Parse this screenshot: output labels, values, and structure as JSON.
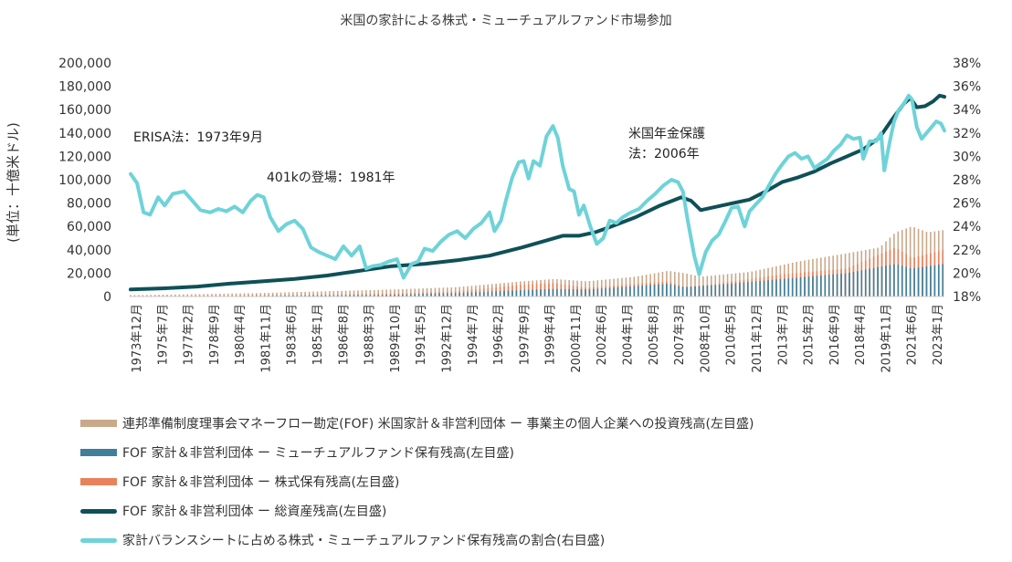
{
  "chart_data": {
    "type": "bar+line",
    "title": "米国の家計による株式・ミューチュアルファンド市場参加",
    "ylabel_left": "(単位：十億米ドル)",
    "ylim_left": [
      0,
      200000
    ],
    "yticks_left": [
      "200,000",
      "180,000",
      "160,000",
      "140,000",
      "120,000",
      "100,000",
      "80,000",
      "60,000",
      "40,000",
      "20,000",
      "0"
    ],
    "ylim_right": [
      18,
      38
    ],
    "yticks_right": [
      "38%",
      "36%",
      "34%",
      "32%",
      "30%",
      "28%",
      "26%",
      "24%",
      "22%",
      "20%",
      "18%"
    ],
    "x_tick_labels": [
      "1973年12月",
      "1975年7月",
      "1977年2月",
      "1978年9月",
      "1980年4月",
      "1981年11月",
      "1983年6月",
      "1985年1月",
      "1986年8月",
      "1988年3月",
      "1989年10月",
      "1991年5月",
      "1992年12月",
      "1994年7月",
      "1996年2月",
      "1997年9月",
      "1999年4月",
      "2000年11月",
      "2002年6月",
      "2004年1月",
      "2005年8月",
      "2007年3月",
      "2008年10月",
      "2010年5月",
      "2011年12月",
      "2013年7月",
      "2015年2月",
      "2016年9月",
      "2018年4月",
      "2019年11月",
      "2021年6月",
      "2023年1月"
    ],
    "x_range_years": [
      1973.9,
      2024.0
    ],
    "annotations": [
      "ERISA法：1973年9月",
      "401kの登場：1981年",
      "米国年金保護法：2006年"
    ],
    "series": [
      {
        "name": "連邦準備制度理事会マネーフロー勘定(FOF) 米国家計＆非営利団体 ー 事業主の個人企業への投資残高(左目盛)",
        "kind": "bar",
        "axis": "left",
        "color": "#c9a98a",
        "points": [
          [
            1974,
            1200
          ],
          [
            1978,
            2000
          ],
          [
            1982,
            3000
          ],
          [
            1986,
            4500
          ],
          [
            1990,
            6000
          ],
          [
            1994,
            8000
          ],
          [
            1998,
            13000
          ],
          [
            2000,
            15000
          ],
          [
            2002,
            13000
          ],
          [
            2005,
            17000
          ],
          [
            2007,
            22000
          ],
          [
            2008,
            20000
          ],
          [
            2009,
            17000
          ],
          [
            2012,
            21000
          ],
          [
            2015,
            30000
          ],
          [
            2018,
            37000
          ],
          [
            2020,
            42000
          ],
          [
            2021,
            55000
          ],
          [
            2022,
            60000
          ],
          [
            2023,
            55000
          ],
          [
            2024,
            57000
          ]
        ]
      },
      {
        "name": "FOF 家計＆非営利団体 ー ミューチュアルファンド保有残高(左目盛)",
        "kind": "bar",
        "axis": "left",
        "color": "#3f7f9a",
        "points": [
          [
            1974,
            200
          ],
          [
            1980,
            400
          ],
          [
            1986,
            1000
          ],
          [
            1990,
            1500
          ],
          [
            1994,
            3000
          ],
          [
            1998,
            5500
          ],
          [
            2000,
            6500
          ],
          [
            2002,
            6000
          ],
          [
            2007,
            11000
          ],
          [
            2008,
            8000
          ],
          [
            2010,
            10000
          ],
          [
            2014,
            15000
          ],
          [
            2018,
            20000
          ],
          [
            2021,
            28000
          ],
          [
            2022,
            24000
          ],
          [
            2024,
            28000
          ]
        ]
      },
      {
        "name": "FOF 家計＆非営利団体 ー 株式保有残高(左目盛)",
        "kind": "bar",
        "axis": "left",
        "color": "#e8825c",
        "points": [
          [
            1974,
            500
          ],
          [
            1980,
            900
          ],
          [
            1986,
            1600
          ],
          [
            1990,
            2500
          ],
          [
            1994,
            4500
          ],
          [
            1998,
            10000
          ],
          [
            2000,
            11500
          ],
          [
            2002,
            7500
          ],
          [
            2007,
            13000
          ],
          [
            2008,
            8000
          ],
          [
            2010,
            11000
          ],
          [
            2014,
            19000
          ],
          [
            2018,
            24000
          ],
          [
            2021,
            42000
          ],
          [
            2022,
            33000
          ],
          [
            2024,
            40000
          ]
        ]
      },
      {
        "name": "FOF 家計＆非営利団体 ー 総資産残高(左目盛)",
        "kind": "line",
        "axis": "left",
        "color": "#0f5057",
        "points": [
          [
            1973.9,
            6000
          ],
          [
            1976,
            7000
          ],
          [
            1978,
            8500
          ],
          [
            1980,
            11000
          ],
          [
            1982,
            13000
          ],
          [
            1984,
            15000
          ],
          [
            1986,
            18000
          ],
          [
            1988,
            22000
          ],
          [
            1990,
            26000
          ],
          [
            1992,
            28000
          ],
          [
            1994,
            31000
          ],
          [
            1996,
            35000
          ],
          [
            1998,
            42000
          ],
          [
            1999.5,
            48000
          ],
          [
            2000.5,
            52000
          ],
          [
            2001.5,
            52000
          ],
          [
            2002.5,
            55000
          ],
          [
            2003.5,
            60000
          ],
          [
            2005,
            68000
          ],
          [
            2006.5,
            78000
          ],
          [
            2007.8,
            85000
          ],
          [
            2008.4,
            82000
          ],
          [
            2009,
            74000
          ],
          [
            2010,
            77000
          ],
          [
            2011,
            80000
          ],
          [
            2012,
            83000
          ],
          [
            2013,
            90000
          ],
          [
            2014,
            98000
          ],
          [
            2015,
            102000
          ],
          [
            2016,
            107000
          ],
          [
            2017,
            114000
          ],
          [
            2018,
            120000
          ],
          [
            2019,
            126000
          ],
          [
            2020,
            136000
          ],
          [
            2020.8,
            152000
          ],
          [
            2021.5,
            165000
          ],
          [
            2021.9,
            170000
          ],
          [
            2022.3,
            162000
          ],
          [
            2022.8,
            163000
          ],
          [
            2023.3,
            167000
          ],
          [
            2023.7,
            172000
          ],
          [
            2024,
            171000
          ]
        ]
      },
      {
        "name": "家計バランスシートに占める株式・ミューチュアルファンド保有残高の割合(右目盛)",
        "kind": "line",
        "axis": "right",
        "color": "#6ed3d8",
        "points": [
          [
            1973.9,
            28.5
          ],
          [
            1974.3,
            27.7
          ],
          [
            1974.7,
            25.2
          ],
          [
            1975.1,
            25.0
          ],
          [
            1975.6,
            26.5
          ],
          [
            1976,
            25.8
          ],
          [
            1976.5,
            26.8
          ],
          [
            1977.2,
            27.0
          ],
          [
            1977.7,
            26.2
          ],
          [
            1978.2,
            25.4
          ],
          [
            1978.8,
            25.2
          ],
          [
            1979.3,
            25.5
          ],
          [
            1979.8,
            25.3
          ],
          [
            1980.3,
            25.7
          ],
          [
            1980.8,
            25.2
          ],
          [
            1981.3,
            26.2
          ],
          [
            1981.7,
            26.7
          ],
          [
            1982.1,
            26.5
          ],
          [
            1982.5,
            24.8
          ],
          [
            1983,
            23.6
          ],
          [
            1983.5,
            24.2
          ],
          [
            1984,
            24.5
          ],
          [
            1984.5,
            23.8
          ],
          [
            1985,
            22.2
          ],
          [
            1985.5,
            21.8
          ],
          [
            1986,
            21.5
          ],
          [
            1986.5,
            21.2
          ],
          [
            1987,
            22.3
          ],
          [
            1987.5,
            21.5
          ],
          [
            1988,
            22.3
          ],
          [
            1988.4,
            20.4
          ],
          [
            1988.8,
            20.6
          ],
          [
            1989.3,
            20.7
          ],
          [
            1989.8,
            21.0
          ],
          [
            1990.3,
            21.2
          ],
          [
            1990.7,
            19.6
          ],
          [
            1991.2,
            20.8
          ],
          [
            1991.6,
            21.0
          ],
          [
            1992,
            22.1
          ],
          [
            1992.5,
            21.9
          ],
          [
            1993,
            22.7
          ],
          [
            1993.5,
            23.3
          ],
          [
            1994,
            23.6
          ],
          [
            1994.5,
            23.0
          ],
          [
            1995,
            23.8
          ],
          [
            1995.5,
            24.3
          ],
          [
            1996,
            25.2
          ],
          [
            1996.3,
            23.6
          ],
          [
            1996.7,
            24.5
          ],
          [
            1997,
            26.2
          ],
          [
            1997.4,
            28.2
          ],
          [
            1997.8,
            29.5
          ],
          [
            1998.1,
            29.6
          ],
          [
            1998.4,
            28.1
          ],
          [
            1998.7,
            29.6
          ],
          [
            1999.1,
            29.2
          ],
          [
            1999.5,
            31.7
          ],
          [
            1999.9,
            32.6
          ],
          [
            2000.2,
            31.6
          ],
          [
            2000.5,
            29.2
          ],
          [
            2000.9,
            27.2
          ],
          [
            2001.2,
            27.0
          ],
          [
            2001.5,
            25.0
          ],
          [
            2001.8,
            25.8
          ],
          [
            2002.2,
            24.0
          ],
          [
            2002.6,
            22.5
          ],
          [
            2003,
            23.0
          ],
          [
            2003.4,
            24.5
          ],
          [
            2003.8,
            24.3
          ],
          [
            2004.2,
            24.8
          ],
          [
            2004.7,
            25.2
          ],
          [
            2005.2,
            25.5
          ],
          [
            2005.7,
            26.2
          ],
          [
            2006.2,
            26.8
          ],
          [
            2006.7,
            27.5
          ],
          [
            2007.2,
            28.0
          ],
          [
            2007.6,
            27.8
          ],
          [
            2007.9,
            27.0
          ],
          [
            2008.2,
            24.5
          ],
          [
            2008.6,
            21.5
          ],
          [
            2008.9,
            19.9
          ],
          [
            2009.3,
            21.8
          ],
          [
            2009.7,
            22.8
          ],
          [
            2010.1,
            23.3
          ],
          [
            2010.5,
            24.4
          ],
          [
            2010.9,
            25.6
          ],
          [
            2011.3,
            25.7
          ],
          [
            2011.7,
            24.0
          ],
          [
            2012,
            25.3
          ],
          [
            2012.4,
            25.9
          ],
          [
            2012.8,
            26.5
          ],
          [
            2013.2,
            27.5
          ],
          [
            2013.6,
            28.5
          ],
          [
            2014,
            29.3
          ],
          [
            2014.4,
            30.0
          ],
          [
            2014.8,
            30.3
          ],
          [
            2015.2,
            29.8
          ],
          [
            2015.6,
            30.0
          ],
          [
            2016,
            29.0
          ],
          [
            2016.4,
            29.4
          ],
          [
            2016.8,
            29.8
          ],
          [
            2017.2,
            30.5
          ],
          [
            2017.6,
            31.0
          ],
          [
            2018,
            31.8
          ],
          [
            2018.4,
            31.5
          ],
          [
            2018.8,
            31.6
          ],
          [
            2019,
            29.8
          ],
          [
            2019.4,
            31.3
          ],
          [
            2019.8,
            31.3
          ],
          [
            2020.1,
            32.0
          ],
          [
            2020.3,
            28.8
          ],
          [
            2020.6,
            31.0
          ],
          [
            2020.9,
            33.0
          ],
          [
            2021.2,
            34.0
          ],
          [
            2021.5,
            34.5
          ],
          [
            2021.8,
            35.2
          ],
          [
            2022,
            34.9
          ],
          [
            2022.3,
            32.5
          ],
          [
            2022.6,
            31.5
          ],
          [
            2022.9,
            32.0
          ],
          [
            2023.2,
            32.5
          ],
          [
            2023.5,
            33.0
          ],
          [
            2023.8,
            32.8
          ],
          [
            2024,
            32.2
          ]
        ]
      }
    ],
    "legend_position": "bottom"
  }
}
